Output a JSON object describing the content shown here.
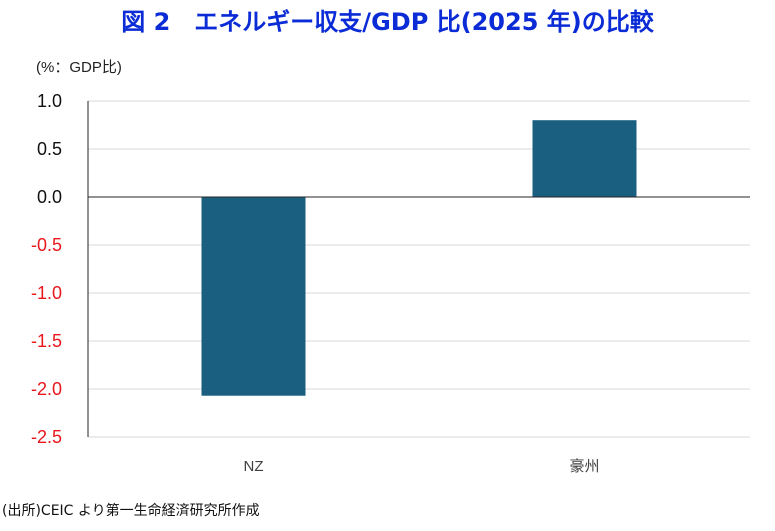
{
  "title": "図 2　エネルギー収支/GDP 比(2025 年)の比較",
  "unit_label": "(%：GDP比)",
  "source": "(出所)CEIC より第一生命経済研究所作成",
  "colors": {
    "bar": "#1a5e80",
    "title": "#0a2bd6",
    "negative_tick": "#e8171c",
    "positive_tick": "#111111",
    "grid": "#d9d9d9",
    "axis": "#262626"
  },
  "chart_data": {
    "type": "bar",
    "title": "図 2　エネルギー収支/GDP 比(2025 年)の比較",
    "ylabel": "(%：GDP比)",
    "xlabel": "",
    "categories": [
      "NZ",
      "豪州"
    ],
    "values": [
      -2.07,
      0.8
    ],
    "ylim": [
      -2.5,
      1.0
    ],
    "yticks": [
      1.0,
      0.5,
      0.0,
      -0.5,
      -1.0,
      -1.5,
      -2.0,
      -2.5
    ],
    "ytick_labels": [
      "1.0",
      "0.5",
      "0.0",
      "-0.5",
      "-1.0",
      "-1.5",
      "-2.0",
      "-2.5"
    ],
    "grid": true,
    "legend": "none"
  }
}
